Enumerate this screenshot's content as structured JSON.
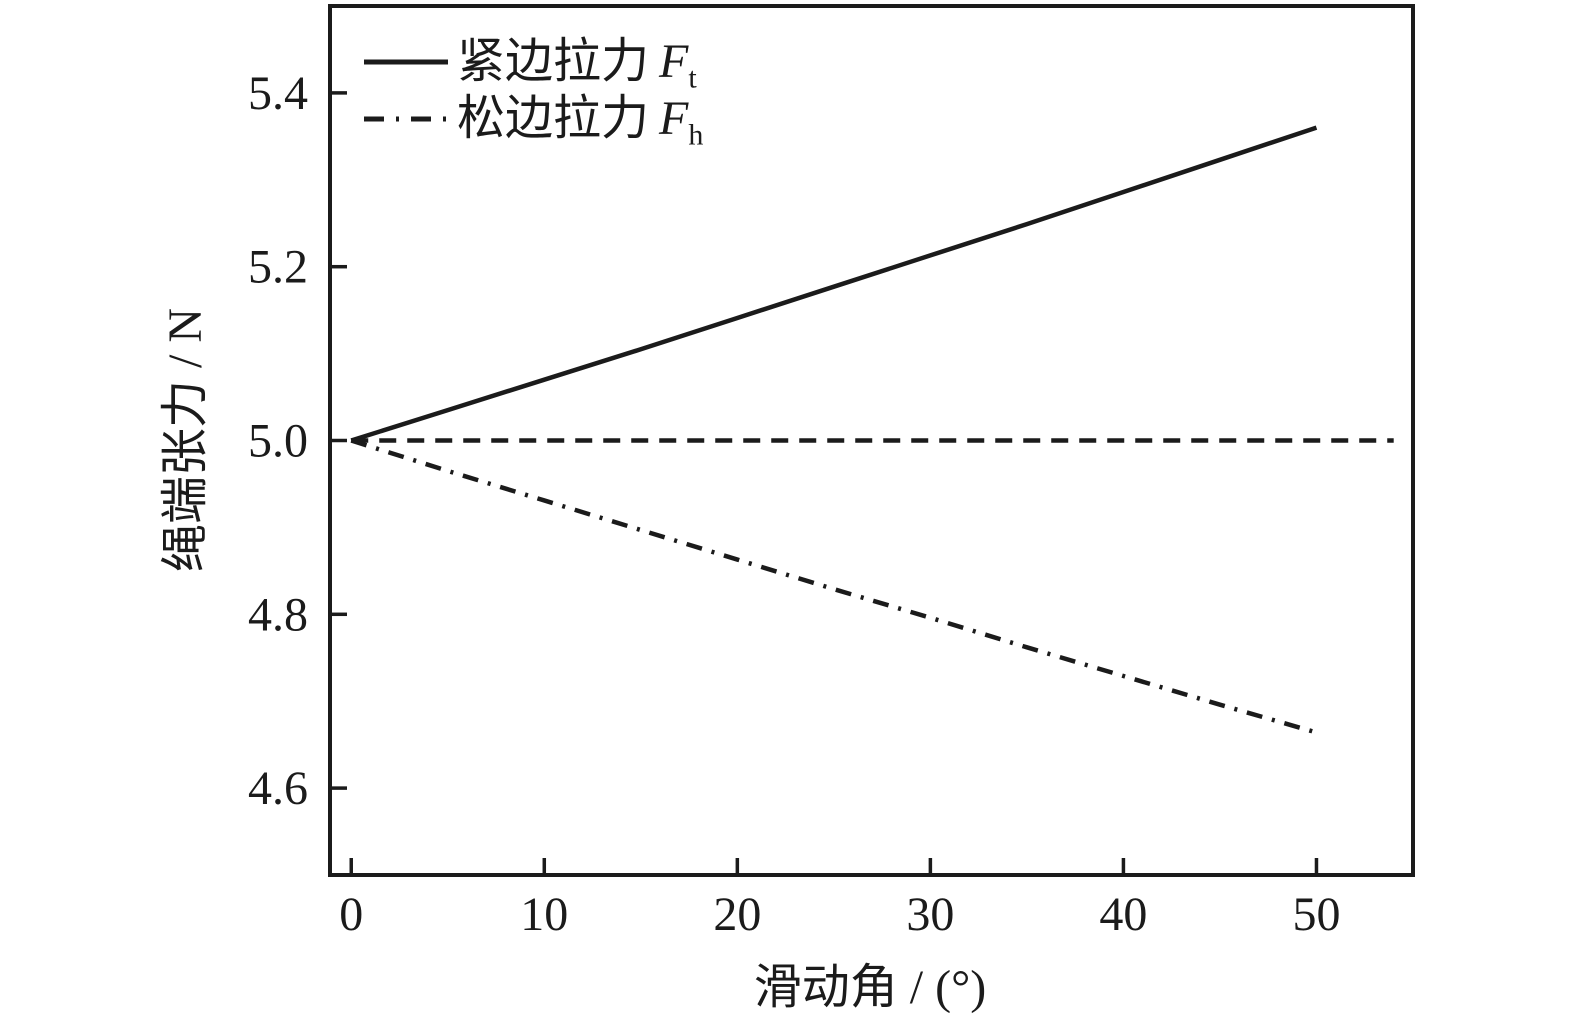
{
  "colors": {
    "line": "#1b1b1b",
    "background": "#ffffff"
  },
  "legend": {
    "entries": [
      {
        "text": "紧边拉力",
        "var": "F",
        "sub": "t",
        "line_style": "solid"
      },
      {
        "text": "松边拉力",
        "var": "F",
        "sub": "h",
        "line_style": "dashdot"
      }
    ]
  },
  "chart_data": {
    "type": "line",
    "title": "",
    "xlabel": "滑动角 / (°)",
    "ylabel": "绳端张力 / N",
    "xlim": [
      -1.1,
      55.0
    ],
    "ylim": [
      4.5,
      5.5
    ],
    "grid": false,
    "legend_position": "top-left-inside",
    "x_ticks": [
      {
        "value": 0,
        "label": "0"
      },
      {
        "value": 10,
        "label": "10"
      },
      {
        "value": 20,
        "label": "20"
      },
      {
        "value": 30,
        "label": "30"
      },
      {
        "value": 40,
        "label": "40"
      },
      {
        "value": 50,
        "label": "50"
      }
    ],
    "y_ticks": [
      {
        "value": 4.6,
        "label": "4.6"
      },
      {
        "value": 4.8,
        "label": "4.8"
      },
      {
        "value": 5.0,
        "label": "5.0"
      },
      {
        "value": 5.2,
        "label": "5.2"
      },
      {
        "value": 5.4,
        "label": "5.4"
      }
    ],
    "series": [
      {
        "id": "tight-side",
        "name": "紧边拉力 Ft",
        "style": "solid",
        "x": [
          0,
          5,
          10,
          15,
          20,
          25,
          30,
          35,
          40,
          45,
          50
        ],
        "values": [
          5.0,
          5.035,
          5.07,
          5.105,
          5.141,
          5.177,
          5.213,
          5.249,
          5.286,
          5.323,
          5.36
        ]
      },
      {
        "id": "reference",
        "name": "",
        "style": "dashed",
        "x": [
          0,
          54
        ],
        "values": [
          5.0,
          5.0
        ]
      },
      {
        "id": "slack-side",
        "name": "松边拉力 Fh",
        "style": "dashdot",
        "x": [
          0,
          5,
          10,
          15,
          20,
          25,
          30,
          35,
          40,
          45,
          50
        ],
        "values": [
          5.0,
          4.965,
          4.931,
          4.897,
          4.863,
          4.829,
          4.796,
          4.762,
          4.729,
          4.696,
          4.664
        ]
      }
    ]
  }
}
